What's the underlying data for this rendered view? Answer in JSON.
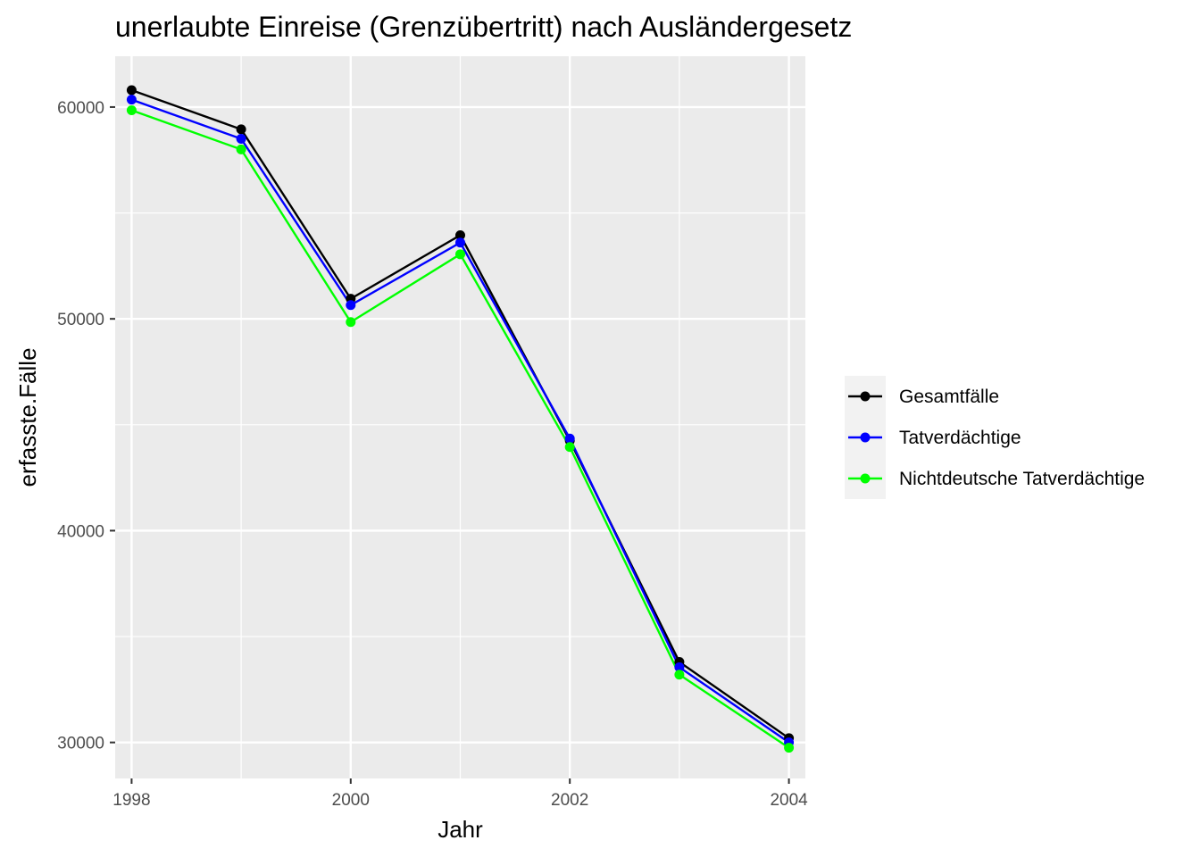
{
  "chart_data": {
    "type": "line",
    "title": "unerlaubte Einreise (Grenzübertritt) nach Ausländergesetz",
    "xlabel": "Jahr",
    "ylabel": "erfasste.Fälle",
    "x": [
      1998,
      1999,
      2000,
      2001,
      2002,
      2003,
      2004
    ],
    "xlim": [
      1997.85,
      2004.15
    ],
    "ylim": [
      28300,
      62400
    ],
    "x_ticks": [
      1998,
      2000,
      2002,
      2004
    ],
    "y_ticks": [
      30000,
      40000,
      50000,
      60000
    ],
    "x_tick_labels": [
      "1998",
      "2000",
      "2002",
      "2004"
    ],
    "y_tick_labels": [
      "30000",
      "40000",
      "50000",
      "60000"
    ],
    "grid": true,
    "legend_position": "right",
    "series": [
      {
        "name": "Gesamtfälle",
        "color": "#000000",
        "values": [
          60800,
          58950,
          50950,
          53950,
          44250,
          33800,
          30200
        ]
      },
      {
        "name": "Tatverdächtige",
        "color": "#0000ff",
        "values": [
          60350,
          58500,
          50650,
          53600,
          44350,
          33550,
          30000
        ]
      },
      {
        "name": "Nichtdeutsche Tatverdächtige",
        "color": "#00ff00",
        "values": [
          59850,
          58000,
          49850,
          53050,
          43950,
          33200,
          29750
        ]
      }
    ]
  }
}
